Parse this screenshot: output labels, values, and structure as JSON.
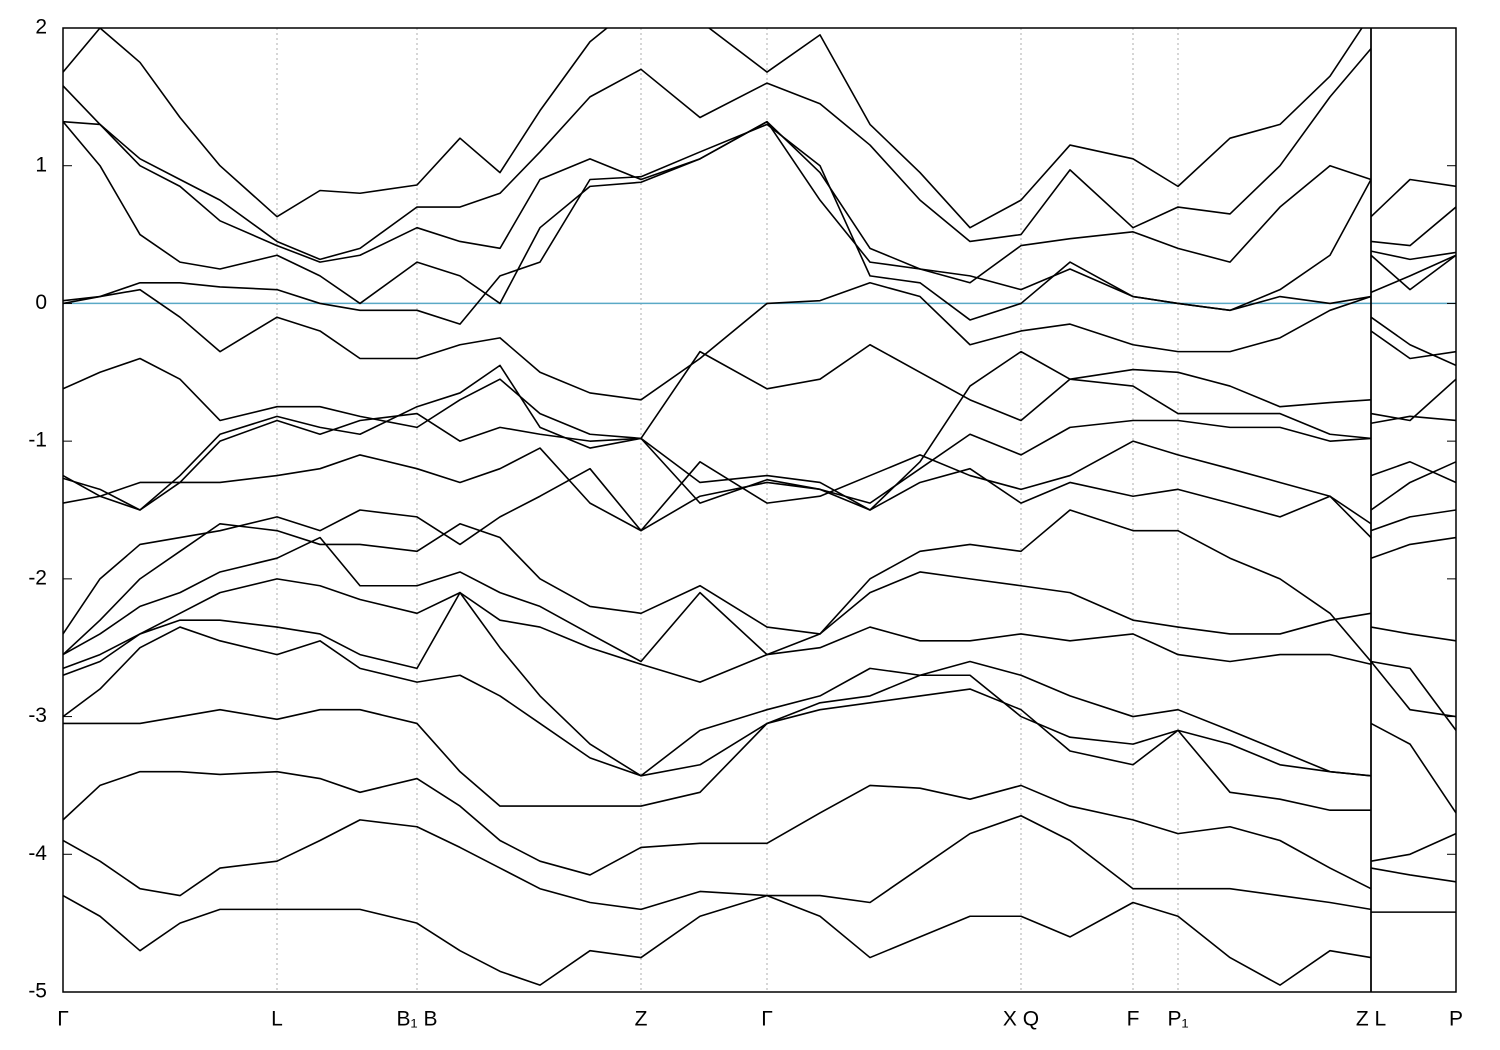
{
  "chart_data": {
    "type": "line",
    "line_color": "#000000",
    "x": [
      0,
      0.37,
      0.77,
      1.17,
      1.57,
      2.14,
      2.57,
      2.97,
      3.54,
      3.97,
      4.37,
      4.77,
      5.27,
      5.78,
      6.37,
      7.04,
      7.57,
      8.07,
      8.57,
      9.07,
      9.58,
      10.07,
      10.7,
      11.15,
      11.67,
      12.17,
      12.67,
      13.08,
      13.08,
      13.08,
      13.47,
      13.93
    ],
    "series": [
      {
        "values": [
          1.68,
          2.0,
          1.75,
          1.35,
          1.0,
          0.63,
          0.82,
          0.8,
          0.86,
          1.2,
          0.95,
          1.4,
          1.9,
          2.2,
          2.05,
          1.68,
          1.95,
          1.3,
          0.95,
          0.55,
          0.75,
          1.15,
          1.05,
          0.85,
          1.2,
          1.3,
          1.65,
          2.1,
          null,
          0.63,
          0.9,
          0.85
        ]
      },
      {
        "values": [
          1.58,
          1.3,
          1.05,
          0.9,
          0.75,
          0.45,
          0.32,
          0.4,
          0.7,
          0.7,
          0.8,
          1.1,
          1.5,
          1.7,
          1.35,
          1.6,
          1.45,
          1.15,
          0.75,
          0.45,
          0.5,
          0.97,
          0.55,
          0.7,
          0.65,
          1.0,
          1.5,
          1.85,
          null,
          0.45,
          0.42,
          0.7
        ]
      },
      {
        "values": [
          1.32,
          1.3,
          1.0,
          0.85,
          0.6,
          0.42,
          0.3,
          0.35,
          0.55,
          0.45,
          0.4,
          0.9,
          1.05,
          0.9,
          1.05,
          1.32,
          0.95,
          0.4,
          0.25,
          0.15,
          0.42,
          0.47,
          0.52,
          0.4,
          0.3,
          0.7,
          1.0,
          0.9,
          null,
          0.38,
          0.32,
          0.37
        ]
      },
      {
        "values": [
          1.32,
          1.0,
          0.5,
          0.3,
          0.25,
          0.35,
          0.2,
          0.0,
          0.3,
          0.2,
          0.0,
          0.55,
          0.85,
          0.88,
          1.05,
          1.32,
          0.75,
          0.3,
          0.25,
          0.2,
          0.1,
          0.25,
          0.05,
          0.0,
          -0.05,
          0.1,
          0.35,
          0.9,
          null,
          0.35,
          0.1,
          0.35
        ]
      },
      {
        "values": [
          0.02,
          0.05,
          0.15,
          0.15,
          0.12,
          0.1,
          0.0,
          -0.05,
          -0.05,
          -0.15,
          0.2,
          0.3,
          0.9,
          0.92,
          1.1,
          1.3,
          1.0,
          0.2,
          0.15,
          -0.12,
          0.0,
          0.3,
          0.05,
          0.0,
          -0.05,
          0.05,
          0.0,
          0.05,
          null,
          0.08,
          0.2,
          0.35
        ]
      },
      {
        "values": [
          0.0,
          0.05,
          0.1,
          -0.1,
          -0.35,
          -0.1,
          -0.2,
          -0.4,
          -0.4,
          -0.3,
          -0.25,
          -0.5,
          -0.65,
          -0.7,
          -0.4,
          0.0,
          0.02,
          0.15,
          0.05,
          -0.3,
          -0.2,
          -0.15,
          -0.3,
          -0.35,
          -0.35,
          -0.25,
          -0.05,
          0.05,
          null,
          -0.1,
          -0.3,
          -0.45
        ]
      },
      {
        "values": [
          -0.62,
          -0.5,
          -0.4,
          -0.55,
          -0.85,
          -0.75,
          -0.75,
          -0.82,
          -0.9,
          -0.7,
          -0.55,
          -0.8,
          -0.95,
          -0.98,
          -0.35,
          -0.62,
          -0.55,
          -0.3,
          -0.5,
          -0.7,
          -0.85,
          -0.55,
          -0.48,
          -0.5,
          -0.6,
          -0.75,
          -0.72,
          -0.7,
          null,
          -0.2,
          -0.4,
          -0.35
        ]
      },
      {
        "values": [
          -1.25,
          -1.4,
          -1.5,
          -1.25,
          -0.95,
          -0.82,
          -0.9,
          -0.95,
          -0.75,
          -0.65,
          -0.45,
          -0.9,
          -1.05,
          -0.98,
          -1.3,
          -1.25,
          -1.3,
          -1.5,
          -1.15,
          -0.6,
          -0.35,
          -0.55,
          -0.6,
          -0.8,
          -0.8,
          -0.8,
          -0.95,
          -0.98,
          null,
          -0.8,
          -0.85,
          -0.55
        ]
      },
      {
        "values": [
          -1.27,
          -1.35,
          -1.5,
          -1.3,
          -1.0,
          -0.85,
          -0.95,
          -0.85,
          -0.8,
          -1.0,
          -0.9,
          -0.95,
          -1.0,
          -0.98,
          -1.45,
          -1.28,
          -1.35,
          -1.45,
          -1.2,
          -0.95,
          -1.1,
          -0.9,
          -0.85,
          -0.85,
          -0.9,
          -0.9,
          -1.0,
          -0.98,
          null,
          -0.87,
          -0.82,
          -0.85
        ]
      },
      {
        "values": [
          -1.45,
          -1.4,
          -1.3,
          -1.3,
          -1.3,
          -1.25,
          -1.2,
          -1.1,
          -1.2,
          -1.3,
          -1.2,
          -1.05,
          -1.45,
          -1.65,
          -1.15,
          -1.45,
          -1.4,
          -1.25,
          -1.1,
          -1.25,
          -1.35,
          -1.25,
          -1.0,
          -1.1,
          -1.2,
          -1.3,
          -1.4,
          -1.7,
          null,
          -1.25,
          -1.15,
          -1.3
        ]
      },
      {
        "values": [
          -2.4,
          -2.0,
          -1.75,
          -1.7,
          -1.65,
          -1.55,
          -1.65,
          -1.5,
          -1.55,
          -1.75,
          -1.55,
          -1.4,
          -1.2,
          -1.65,
          -1.4,
          -1.3,
          -1.35,
          -1.5,
          -1.3,
          -1.2,
          -1.45,
          -1.3,
          -1.4,
          -1.35,
          -1.45,
          -1.55,
          -1.4,
          -1.6,
          null,
          -1.5,
          -1.3,
          -1.15
        ]
      },
      {
        "values": [
          -2.55,
          -2.3,
          -2.0,
          -1.8,
          -1.6,
          -1.65,
          -1.75,
          -1.75,
          -1.8,
          -1.6,
          -1.7,
          -2.0,
          -2.2,
          -2.25,
          -2.05,
          -2.35,
          -2.4,
          -2.0,
          -1.8,
          -1.75,
          -1.8,
          -1.5,
          -1.65,
          -1.65,
          -1.85,
          -2.0,
          -2.25,
          -2.6,
          null,
          -1.65,
          -1.55,
          -1.5
        ]
      },
      {
        "values": [
          -2.55,
          -2.4,
          -2.2,
          -2.1,
          -1.95,
          -1.85,
          -1.7,
          -2.05,
          -2.05,
          -1.95,
          -2.1,
          -2.2,
          -2.4,
          -2.6,
          -2.1,
          -2.55,
          -2.4,
          -2.1,
          -1.95,
          -2.0,
          -2.05,
          -2.1,
          -2.3,
          -2.35,
          -2.4,
          -2.4,
          -2.3,
          -2.25,
          null,
          -1.85,
          -1.75,
          -1.7
        ]
      },
      {
        "values": [
          -2.65,
          -2.55,
          -2.4,
          -2.25,
          -2.1,
          -2.0,
          -2.05,
          -2.15,
          -2.25,
          -2.1,
          -2.3,
          -2.35,
          -2.5,
          -2.62,
          -2.75,
          -2.55,
          -2.5,
          -2.35,
          -2.45,
          -2.45,
          -2.4,
          -2.45,
          -2.4,
          -2.55,
          -2.6,
          -2.55,
          -2.55,
          -2.62,
          null,
          -2.35,
          -2.4,
          -2.45
        ]
      },
      {
        "values": [
          -2.7,
          -2.6,
          -2.4,
          -2.3,
          -2.3,
          -2.35,
          -2.4,
          -2.55,
          -2.65,
          -2.1,
          -2.5,
          -2.85,
          -3.2,
          -3.43,
          -3.1,
          -2.95,
          -2.85,
          -2.65,
          -2.7,
          -2.6,
          -2.7,
          -2.85,
          -3.0,
          -2.95,
          -3.1,
          -3.25,
          -3.4,
          -3.43,
          null,
          -2.6,
          -2.95,
          -3.0
        ]
      },
      {
        "values": [
          -3.0,
          -2.8,
          -2.5,
          -2.35,
          -2.45,
          -2.55,
          -2.45,
          -2.65,
          -2.75,
          -2.7,
          -2.85,
          -3.05,
          -3.3,
          -3.43,
          -3.35,
          -3.05,
          -2.95,
          -2.9,
          -2.85,
          -2.8,
          -2.95,
          -3.25,
          -3.35,
          -3.1,
          -3.2,
          -3.35,
          -3.4,
          -3.43,
          null,
          -2.6,
          -2.65,
          -3.1
        ]
      },
      {
        "values": [
          -3.05,
          -3.05,
          -3.05,
          -3.0,
          -2.95,
          -3.02,
          -2.95,
          -2.95,
          -3.05,
          -3.4,
          -3.65,
          -3.65,
          -3.65,
          -3.65,
          -3.55,
          -3.05,
          -2.9,
          -2.85,
          -2.7,
          -2.7,
          -3.0,
          -3.15,
          -3.2,
          -3.1,
          -3.55,
          -3.6,
          -3.68,
          -3.68,
          null,
          -3.05,
          -3.2,
          -3.7
        ]
      },
      {
        "values": [
          -3.75,
          -3.5,
          -3.4,
          -3.4,
          -3.42,
          -3.4,
          -3.45,
          -3.55,
          -3.45,
          -3.65,
          -3.9,
          -4.05,
          -4.15,
          -3.95,
          -3.92,
          -3.92,
          -3.7,
          -3.5,
          -3.52,
          -3.6,
          -3.5,
          -3.65,
          -3.75,
          -3.85,
          -3.8,
          -3.9,
          -4.1,
          -4.25,
          null,
          -4.05,
          -4.0,
          -3.85
        ]
      },
      {
        "values": [
          -3.9,
          -4.05,
          -4.25,
          -4.3,
          -4.1,
          -4.05,
          -3.9,
          -3.75,
          -3.8,
          -3.95,
          -4.1,
          -4.25,
          -4.35,
          -4.4,
          -4.27,
          -4.3,
          -4.3,
          -4.35,
          -4.1,
          -3.85,
          -3.72,
          -3.9,
          -4.25,
          -4.25,
          -4.25,
          -4.3,
          -4.35,
          -4.4,
          null,
          -4.1,
          -4.15,
          -4.2
        ]
      },
      {
        "values": [
          -4.3,
          -4.45,
          -4.7,
          -4.5,
          -4.4,
          -4.4,
          -4.4,
          -4.4,
          -4.5,
          -4.7,
          -4.85,
          -4.95,
          -4.7,
          -4.75,
          -4.45,
          -4.3,
          -4.45,
          -4.75,
          -4.6,
          -4.45,
          -4.45,
          -4.6,
          -4.35,
          -4.45,
          -4.75,
          -4.95,
          -4.7,
          -4.75,
          null,
          -4.42,
          -4.42,
          -4.42
        ]
      }
    ],
    "xlim": [
      0,
      13.93
    ],
    "xticks": [
      {
        "value": 0,
        "label": "Γ"
      },
      {
        "value": 2.14,
        "label": "L"
      },
      {
        "value": 3.54,
        "label": "B₁ B"
      },
      {
        "value": 5.78,
        "label": "Z"
      },
      {
        "value": 7.04,
        "label": "Γ"
      },
      {
        "value": 9.58,
        "label": "X Q"
      },
      {
        "value": 10.7,
        "label": "F"
      },
      {
        "value": 11.15,
        "label": "P₁"
      },
      {
        "value": 13.08,
        "label": "Z L"
      },
      {
        "value": 13.93,
        "label": "P"
      }
    ],
    "ylim": [
      -5,
      2
    ],
    "yticks": [
      2,
      1,
      0,
      -1,
      -2,
      -3,
      -4,
      -5
    ],
    "fermi_level": {
      "value": 0,
      "color": "#5aa9c6"
    },
    "xgrid": true
  }
}
